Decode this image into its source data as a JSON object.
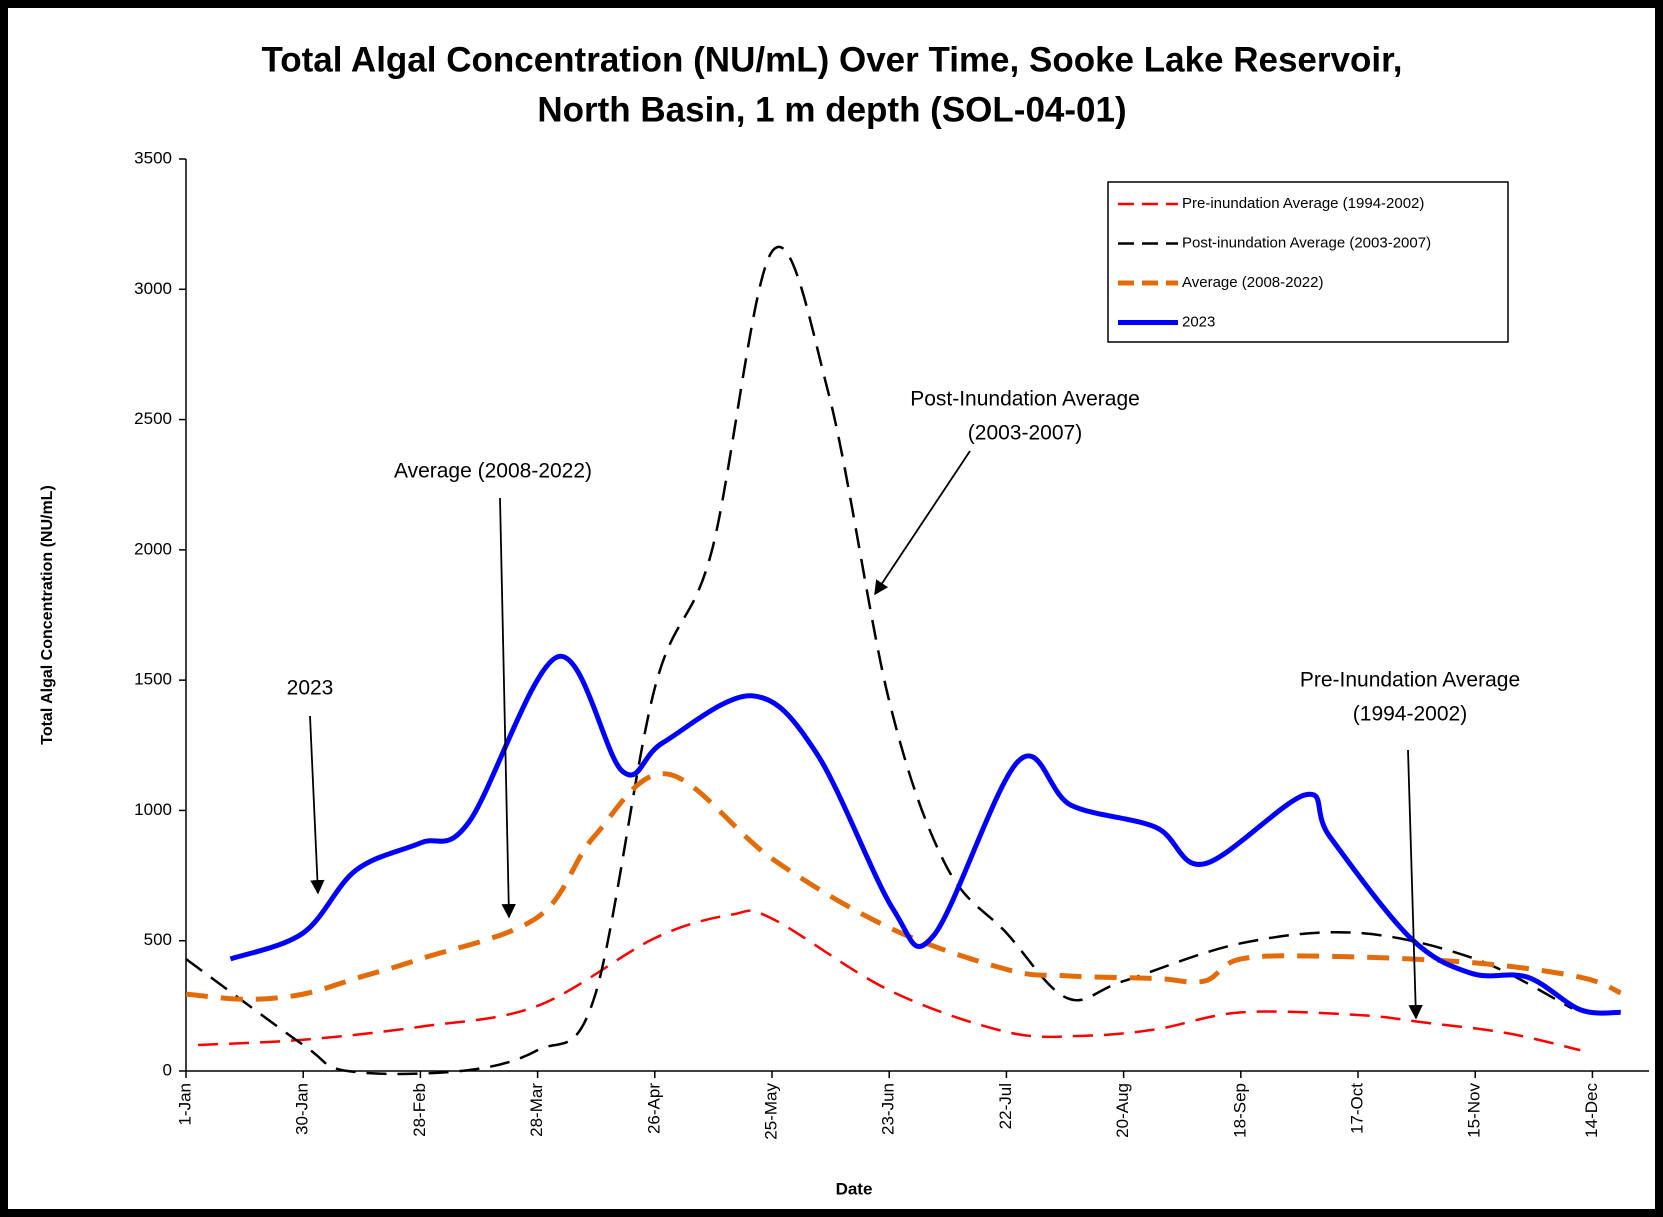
{
  "chart_data": {
    "type": "line",
    "title": [
      "Total Algal Concentration (NU/mL) Over Time, Sooke Lake Reservoir,",
      "North Basin, 1 m depth (SOL-04-01)"
    ],
    "x_label": "Date",
    "y_label": "Total Algal Concentration (NU/mL)",
    "xlim": [
      0,
      362
    ],
    "xticks": [
      {
        "value": 0,
        "label": "1-Jan"
      },
      {
        "value": 29,
        "label": "30-Jan"
      },
      {
        "value": 58,
        "label": "28-Feb"
      },
      {
        "value": 87,
        "label": "28-Mar"
      },
      {
        "value": 116,
        "label": "26-Apr"
      },
      {
        "value": 145,
        "label": "25-May"
      },
      {
        "value": 174,
        "label": "23-Jun"
      },
      {
        "value": 203,
        "label": "22-Jul"
      },
      {
        "value": 232,
        "label": "20-Aug"
      },
      {
        "value": 261,
        "label": "18-Sep"
      },
      {
        "value": 290,
        "label": "17-Oct"
      },
      {
        "value": 319,
        "label": "15-Nov"
      },
      {
        "value": 348,
        "label": "14-Dec"
      }
    ],
    "ylim": [
      0,
      3500
    ],
    "yticks": [
      0,
      500,
      1000,
      1500,
      2000,
      2500,
      3000,
      3500
    ],
    "legend_position": "upper right",
    "series": [
      {
        "name": "Pre-inundation Average (1994-2002)",
        "color": "#ff0000",
        "style": "dashed",
        "x": [
          3,
          29,
          58,
          87,
          116,
          135,
          145,
          174,
          203,
          222,
          240,
          261,
          290,
          307,
          327,
          345
        ],
        "values": [
          100,
          120,
          170,
          250,
          510,
          600,
          585,
          310,
          150,
          135,
          160,
          225,
          215,
          185,
          145,
          80
        ]
      },
      {
        "name": "Post-inundation Average (2003-2007)",
        "color": "#000000",
        "style": "dashed",
        "x": [
          0,
          29,
          40,
          68,
          87,
          101,
          116,
          130,
          145,
          159,
          174,
          188,
          203,
          218,
          232,
          261,
          290,
          319,
          343
        ],
        "values": [
          430,
          100,
          0,
          0,
          80,
          280,
          1470,
          1990,
          3145,
          2600,
          1420,
          790,
          530,
          280,
          345,
          490,
          530,
          430,
          240
        ]
      },
      {
        "name": "Average (2008-2022)",
        "color": "#e36c0a",
        "style": "dashed-thick",
        "x": [
          0,
          15,
          29,
          43,
          58,
          87,
          101,
          119,
          145,
          174,
          203,
          218,
          240,
          252,
          261,
          283,
          319,
          345,
          355
        ],
        "values": [
          295,
          275,
          295,
          360,
          430,
          590,
          900,
          1140,
          815,
          550,
          390,
          365,
          355,
          345,
          430,
          440,
          415,
          360,
          300
        ]
      },
      {
        "name": "2023",
        "color": "#0000ff",
        "style": "solid",
        "x": [
          11,
          29,
          42,
          58,
          70,
          92,
          108,
          118,
          140,
          156,
          175,
          185,
          206,
          219,
          240,
          252,
          277,
          283,
          303,
          318,
          332,
          345,
          355
        ],
        "values": [
          430,
          530,
          770,
          875,
          955,
          1590,
          1150,
          1260,
          1440,
          1220,
          620,
          520,
          1190,
          1020,
          935,
          795,
          1060,
          900,
          510,
          375,
          360,
          235,
          225
        ]
      }
    ],
    "annotations": [
      {
        "text": [
          "2023"
        ]
      },
      {
        "text": [
          "Average (2008-2022)"
        ]
      },
      {
        "text": [
          "Post-Inundation Average",
          "(2003-2007)"
        ]
      },
      {
        "text": [
          "Pre-Inundation Average",
          "(1994-2002)"
        ]
      }
    ]
  }
}
